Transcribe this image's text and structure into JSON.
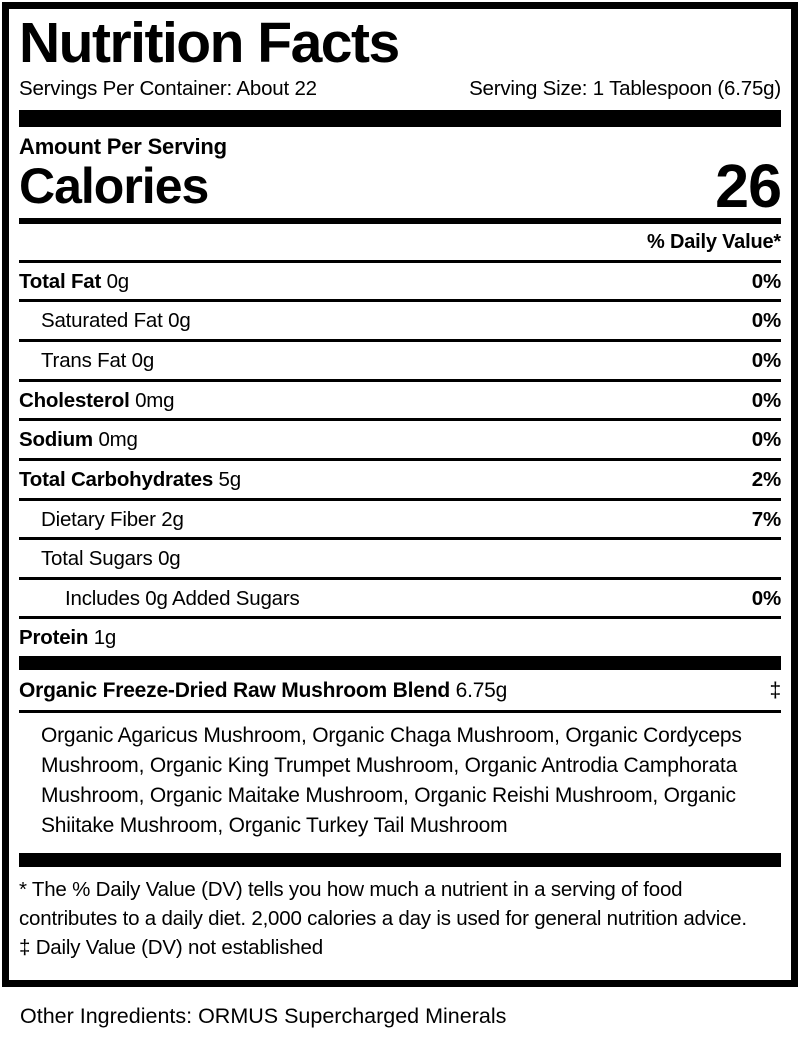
{
  "label": {
    "title": "Nutrition Facts",
    "servings_per_container": "Servings Per Container: About 22",
    "serving_size": "Serving Size: 1 Tablespoon (6.75g)",
    "amount_per_serving": "Amount Per Serving",
    "calories_label": "Calories",
    "calories_value": "26",
    "daily_value_header": "% Daily Value*",
    "rows": [
      {
        "name": "Total Fat",
        "amount": "0g",
        "dv": "0%"
      },
      {
        "name": "Saturated Fat",
        "amount": "0g",
        "dv": "0%"
      },
      {
        "name": "Trans Fat",
        "amount": "0g",
        "dv": "0%"
      },
      {
        "name": "Cholesterol",
        "amount": "0mg",
        "dv": "0%"
      },
      {
        "name": "Sodium",
        "amount": "0mg",
        "dv": "0%"
      },
      {
        "name": "Total Carbohydrates",
        "amount": "5g",
        "dv": "2%"
      },
      {
        "name": "Dietary Fiber",
        "amount": "2g",
        "dv": "7%"
      },
      {
        "name": "Total Sugars",
        "amount": "0g",
        "dv": ""
      },
      {
        "name": "Includes 0g Added Sugars",
        "amount": "",
        "dv": "0%"
      },
      {
        "name": "Protein",
        "amount": "1g",
        "dv": ""
      }
    ],
    "blend": {
      "name": "Organic Freeze-Dried Raw Mushroom Blend",
      "amount": "6.75g",
      "dv_symbol": "‡"
    },
    "blend_ingredients": "Organic Agaricus Mushroom, Organic Chaga Mushroom, Organic Cordyceps Mushroom, Organic King Trumpet Mushroom, Organic Antrodia Camphorata Mushroom, Organic Maitake Mushroom, Organic Reishi Mushroom, Organic Shiitake Mushroom, Organic Turkey Tail Mushroom",
    "footnotes": [
      "* The % Daily Value (DV) tells you how much a nutrient in a serving of food contributes to a daily diet. 2,000 calories a day is used for general nutrition advice.",
      "‡ Daily Value (DV) not established"
    ]
  },
  "other_ingredients": "Other Ingredients: ORMUS Supercharged Minerals",
  "colors": {
    "text": "#000000",
    "background": "#ffffff",
    "rule": "#000000"
  }
}
